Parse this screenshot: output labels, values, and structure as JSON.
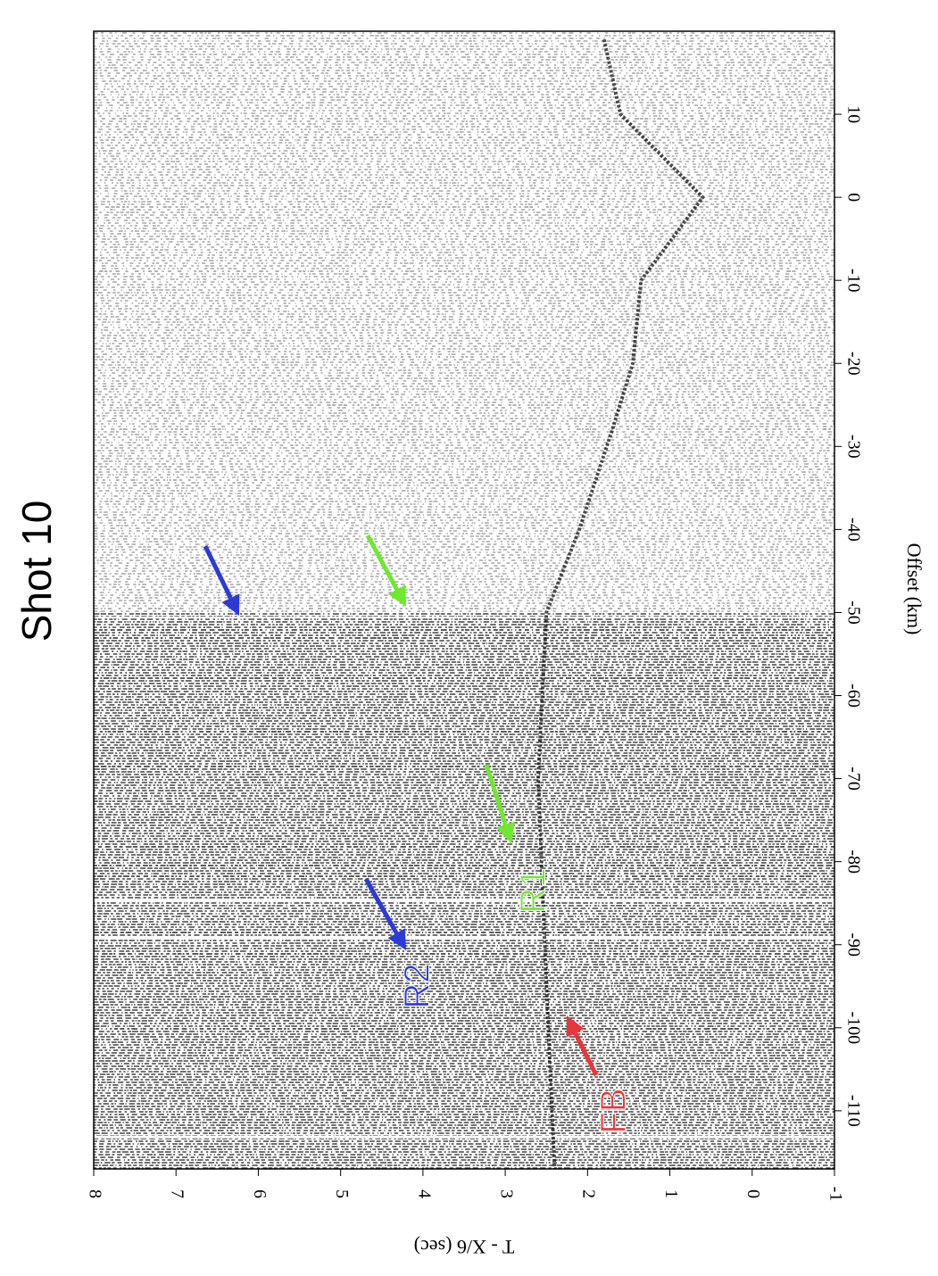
{
  "chart_data": {
    "type": "seismic",
    "title": "Shot 10",
    "x_label": "Offset (km)",
    "y_label": "T - X/6 (sec)",
    "xlim": [
      20,
      -117
    ],
    "xticks": [
      10,
      0,
      -10,
      -20,
      -30,
      -40,
      -50,
      -60,
      -70,
      -80,
      -90,
      -100,
      -110
    ],
    "ylim": [
      8,
      -1
    ],
    "yticks": [
      8,
      7,
      6,
      5,
      4,
      3,
      2,
      1,
      0,
      -1
    ],
    "annotations": [
      {
        "label": "FB",
        "color": "#e8363a"
      },
      {
        "label": "R1",
        "color": "#6ee830"
      },
      {
        "label": "R2",
        "color": "#2c3ad8"
      }
    ]
  }
}
